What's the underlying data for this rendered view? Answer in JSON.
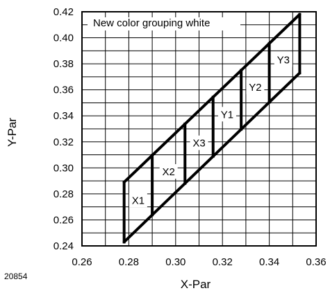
{
  "chart_data": {
    "type": "line",
    "title": "New color grouping white",
    "xlabel": "X-Par",
    "ylabel": "Y-Par",
    "xlim": [
      0.26,
      0.36
    ],
    "ylim": [
      0.24,
      0.42
    ],
    "x_ticks": [
      0.26,
      0.28,
      0.3,
      0.32,
      0.34,
      0.36
    ],
    "y_ticks": [
      0.24,
      0.26,
      0.28,
      0.3,
      0.32,
      0.34,
      0.36,
      0.38,
      0.4,
      0.42
    ],
    "x_tick_labels": [
      "0.26",
      "0.28",
      "0.30",
      "0.32",
      "0.34",
      "0.36"
    ],
    "y_tick_labels": [
      "0.24",
      "0.26",
      "0.28",
      "0.30",
      "0.32",
      "0.34",
      "0.36",
      "0.38",
      "0.40",
      "0.42"
    ],
    "grid": true,
    "region_outline": {
      "upper_edge": [
        [
          0.278,
          0.289
        ],
        [
          0.353,
          0.418
        ]
      ],
      "lower_edge": [
        [
          0.278,
          0.243
        ],
        [
          0.353,
          0.373
        ]
      ]
    },
    "bin_dividers_x": [
      0.278,
      0.29,
      0.304,
      0.316,
      0.328,
      0.34,
      0.353
    ],
    "bins": [
      {
        "label": "X1",
        "x": 0.284,
        "y": 0.275
      },
      {
        "label": "X2",
        "x": 0.297,
        "y": 0.297
      },
      {
        "label": "X3",
        "x": 0.31,
        "y": 0.319
      },
      {
        "label": "Y1",
        "x": 0.322,
        "y": 0.341
      },
      {
        "label": "Y2",
        "x": 0.334,
        "y": 0.362
      },
      {
        "label": "Y3",
        "x": 0.346,
        "y": 0.383
      }
    ],
    "doc_number": "20854"
  }
}
